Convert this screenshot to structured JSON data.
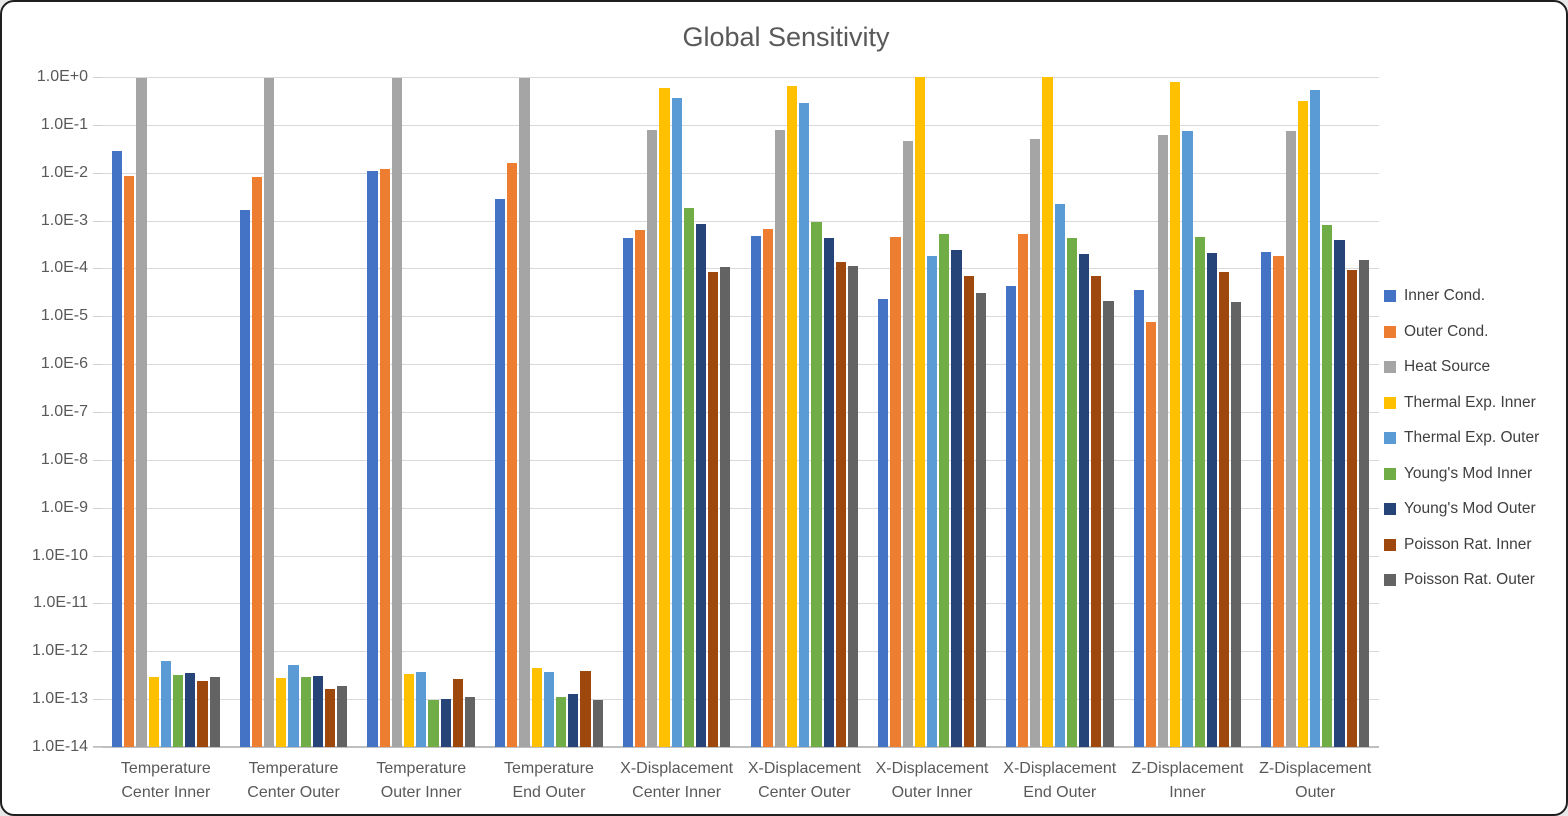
{
  "chart_data": {
    "type": "bar",
    "title": "Global Sensitivity",
    "grid": true,
    "legend_position": "right",
    "y_axis": {
      "scale": "log10",
      "min": 1e-14,
      "max": 1.0,
      "tick_labels": [
        "1.0E+0",
        "1.0E-1",
        "1.0E-2",
        "1.0E-3",
        "1.0E-4",
        "1.0E-5",
        "1.0E-6",
        "1.0E-7",
        "1.0E-8",
        "1.0E-9",
        "1.0E-10",
        "1.0E-11",
        "1.0E-12",
        "1.0E-13",
        "1.0E-14"
      ]
    },
    "categories": [
      "Temperature Center Inner",
      "Temperature Center Outer",
      "Temperature Outer Inner",
      "Temperature End Outer",
      "X-Displacement Center Inner",
      "X-Displacement Center Outer",
      "X-Displacement Outer Inner",
      "X-Displacement End Outer",
      "Z-Displacement Inner",
      "Z-Displacement Outer"
    ],
    "category_label_lines": [
      [
        "Temperature",
        "Center Inner"
      ],
      [
        "Temperature",
        "Center Outer"
      ],
      [
        "Temperature",
        "Outer Inner"
      ],
      [
        "Temperature",
        "End Outer"
      ],
      [
        "X-Displacement",
        "Center Inner"
      ],
      [
        "X-Displacement",
        "Center Outer"
      ],
      [
        "X-Displacement",
        "Outer Inner"
      ],
      [
        "X-Displacement",
        "End Outer"
      ],
      [
        "Z-Displacement",
        "Inner"
      ],
      [
        "Z-Displacement",
        "Outer"
      ]
    ],
    "series": [
      {
        "name": "Inner Cond.",
        "color": "#4472C4",
        "values": [
          0.028,
          0.0017,
          0.011,
          0.0028,
          0.00044,
          0.00048,
          2.3e-05,
          4.2e-05,
          3.5e-05,
          0.00022
        ]
      },
      {
        "name": "Outer Cond.",
        "color": "#ED7D31",
        "values": [
          0.0085,
          0.008,
          0.012,
          0.016,
          0.00064,
          0.00067,
          0.00045,
          0.00052,
          7.5e-06,
          0.00018
        ]
      },
      {
        "name": "Heat Source",
        "color": "#A5A5A5",
        "values": [
          0.95,
          0.95,
          0.95,
          0.95,
          0.08,
          0.08,
          0.047,
          0.051,
          0.06,
          0.075
        ]
      },
      {
        "name": "Thermal Exp. Inner",
        "color": "#FFC000",
        "values": [
          2.9e-13,
          2.8e-13,
          3.3e-13,
          4.4e-13,
          0.59,
          0.65,
          0.98,
          0.98,
          0.78,
          0.31
        ]
      },
      {
        "name": "Thermal Exp. Outer",
        "color": "#5B9BD5",
        "values": [
          6.3e-13,
          5.1e-13,
          3.7e-13,
          3.7e-13,
          0.36,
          0.29,
          0.00018,
          0.0022,
          0.073,
          0.53
        ]
      },
      {
        "name": "Young's Mod Inner",
        "color": "#70AD47",
        "values": [
          3.2e-13,
          2.9e-13,
          9.5e-14,
          1.1e-13,
          0.0018,
          0.00095,
          0.00052,
          0.00043,
          0.00045,
          0.00082
        ]
      },
      {
        "name": "Young's Mod Outer",
        "color": "#264478",
        "values": [
          3.6e-13,
          3e-13,
          1e-13,
          1.3e-13,
          0.00084,
          0.00044,
          0.00024,
          0.0002,
          0.00021,
          0.00039
        ]
      },
      {
        "name": "Poisson Rat. Inner",
        "color": "#9E480E",
        "values": [
          2.4e-13,
          1.6e-13,
          2.7e-13,
          3.9e-13,
          8.5e-05,
          0.000135,
          7e-05,
          6.8e-05,
          8.5e-05,
          9.5e-05
        ]
      },
      {
        "name": "Poisson Rat. Outer",
        "color": "#636363",
        "values": [
          2.9e-13,
          1.9e-13,
          1.1e-13,
          9.5e-14,
          0.000105,
          0.000115,
          3e-05,
          2.1e-05,
          2e-05,
          0.00015
        ]
      }
    ],
    "palette": {
      "gridline": "#D9D9D9",
      "axis_line": "#BFBFBF",
      "axis_text": "#595959",
      "legend_text": "#404040",
      "title_text": "#595959",
      "background": "#FFFFFF"
    }
  }
}
